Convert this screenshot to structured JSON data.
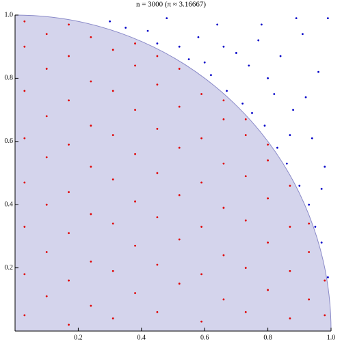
{
  "chart_data": {
    "type": "scatter",
    "title": "n = 3000 (π ≈ 3.16667)",
    "xlim": [
      0,
      1
    ],
    "ylim": [
      0,
      1
    ],
    "xticks": [
      0.2,
      0.4,
      0.6,
      0.8,
      {
        "value": 1,
        "label": "1.0"
      }
    ],
    "yticks": [
      0.2,
      0.4,
      0.6,
      0.8,
      {
        "value": 1,
        "label": "1.0"
      }
    ],
    "region_color": "#d4d4ec",
    "series": [
      {
        "color": "#e00000",
        "x": [
          0.03,
          0.03,
          0.03,
          0.03,
          0.03,
          0.03,
          0.03,
          0.03,
          0.1,
          0.1,
          0.1,
          0.1,
          0.1,
          0.1,
          0.1,
          0.17,
          0.17,
          0.17,
          0.17,
          0.17,
          0.17,
          0.17,
          0.17,
          0.24,
          0.24,
          0.24,
          0.24,
          0.24,
          0.24,
          0.24,
          0.31,
          0.31,
          0.31,
          0.31,
          0.31,
          0.31,
          0.31,
          0.38,
          0.38,
          0.38,
          0.38,
          0.38,
          0.38,
          0.38,
          0.45,
          0.45,
          0.45,
          0.45,
          0.45,
          0.45,
          0.45,
          0.52,
          0.52,
          0.52,
          0.52,
          0.52,
          0.52,
          0.59,
          0.59,
          0.59,
          0.59,
          0.59,
          0.59,
          0.66,
          0.66,
          0.66,
          0.66,
          0.66,
          0.66,
          0.73,
          0.73,
          0.73,
          0.73,
          0.73,
          0.73,
          0.8,
          0.8,
          0.8,
          0.8,
          0.8,
          0.87,
          0.87,
          0.87,
          0.87,
          0.93,
          0.93,
          0.93,
          0.98,
          0.98
        ],
        "y": [
          0.05,
          0.18,
          0.33,
          0.47,
          0.61,
          0.76,
          0.9,
          0.98,
          0.11,
          0.25,
          0.4,
          0.55,
          0.68,
          0.83,
          0.94,
          0.02,
          0.16,
          0.31,
          0.44,
          0.59,
          0.73,
          0.87,
          0.97,
          0.08,
          0.22,
          0.37,
          0.52,
          0.65,
          0.79,
          0.93,
          0.04,
          0.19,
          0.34,
          0.48,
          0.62,
          0.76,
          0.89,
          0.12,
          0.27,
          0.41,
          0.56,
          0.7,
          0.84,
          0.91,
          0.06,
          0.21,
          0.36,
          0.5,
          0.64,
          0.78,
          0.87,
          0.15,
          0.29,
          0.43,
          0.58,
          0.71,
          0.83,
          0.03,
          0.18,
          0.33,
          0.47,
          0.61,
          0.75,
          0.1,
          0.24,
          0.39,
          0.53,
          0.67,
          0.73,
          0.06,
          0.2,
          0.35,
          0.49,
          0.62,
          0.67,
          0.13,
          0.28,
          0.42,
          0.54,
          0.59,
          0.04,
          0.19,
          0.33,
          0.46,
          0.1,
          0.25,
          0.34,
          0.05,
          0.16
        ]
      },
      {
        "color": "#0000c8",
        "x": [
          0.3,
          0.35,
          0.42,
          0.48,
          0.52,
          0.55,
          0.58,
          0.62,
          0.64,
          0.67,
          0.7,
          0.72,
          0.75,
          0.77,
          0.79,
          0.8,
          0.83,
          0.84,
          0.86,
          0.88,
          0.9,
          0.91,
          0.93,
          0.94,
          0.95,
          0.96,
          0.97,
          0.98,
          0.99,
          0.99,
          0.6,
          0.66,
          0.74,
          0.82,
          0.87,
          0.92,
          0.97,
          0.89,
          0.78,
          0.45
        ],
        "y": [
          0.98,
          0.96,
          0.95,
          0.99,
          0.9,
          0.86,
          0.93,
          0.81,
          0.97,
          0.76,
          0.88,
          0.72,
          0.69,
          0.92,
          0.65,
          0.8,
          0.58,
          0.87,
          0.53,
          0.7,
          0.46,
          0.94,
          0.4,
          0.61,
          0.33,
          0.82,
          0.28,
          0.52,
          0.17,
          0.99,
          0.85,
          0.9,
          0.84,
          0.75,
          0.62,
          0.74,
          0.45,
          0.99,
          0.97,
          0.91
        ]
      }
    ]
  }
}
